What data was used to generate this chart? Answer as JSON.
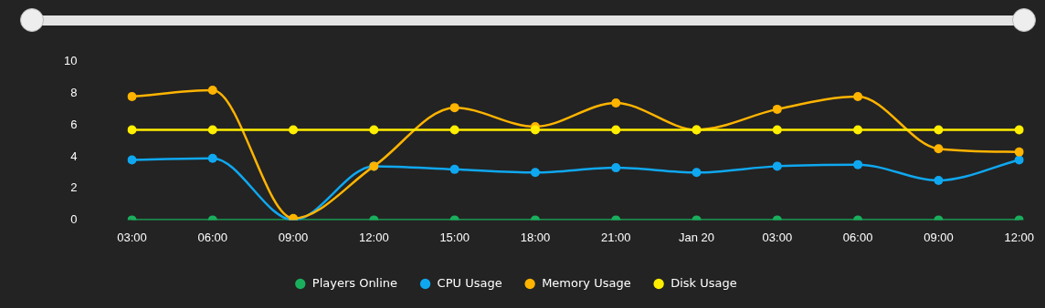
{
  "chart_data": {
    "type": "line",
    "categories": [
      "03:00",
      "06:00",
      "09:00",
      "12:00",
      "15:00",
      "18:00",
      "21:00",
      "Jan 20",
      "03:00",
      "06:00",
      "09:00",
      "12:00"
    ],
    "series": [
      {
        "name": "Players Online",
        "color": "#1aaf5d",
        "values": [
          0,
          0,
          0,
          0,
          0,
          0,
          0,
          0,
          0,
          0,
          0,
          0
        ]
      },
      {
        "name": "CPU Usage",
        "color": "#0fa8f0",
        "values": [
          3.8,
          3.9,
          0,
          3.4,
          3.2,
          3.0,
          3.3,
          3.0,
          3.4,
          3.5,
          2.5,
          3.8
        ]
      },
      {
        "name": "Memory Usage",
        "color": "#ffb400",
        "values": [
          7.8,
          8.2,
          0.1,
          3.4,
          7.1,
          5.9,
          7.4,
          5.7,
          7.0,
          7.8,
          4.5,
          4.3
        ]
      },
      {
        "name": "Disk Usage",
        "color": "#ffee00",
        "values": [
          5.7,
          5.7,
          5.7,
          5.7,
          5.7,
          5.7,
          5.7,
          5.7,
          5.7,
          5.7,
          5.7,
          5.7
        ]
      }
    ],
    "ylim": [
      0,
      10
    ],
    "yticks": [
      0,
      2,
      4,
      6,
      8,
      10
    ],
    "grid": false,
    "legend": "bottom",
    "marker": "circle",
    "line_style": "solid"
  }
}
